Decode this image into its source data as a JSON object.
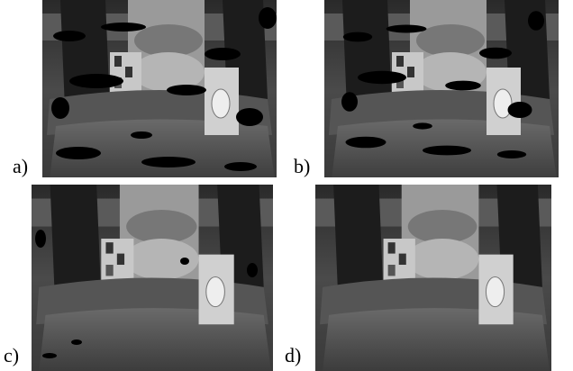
{
  "figure": {
    "panels": [
      {
        "label": "a)"
      },
      {
        "label": "b)"
      },
      {
        "label": "c)"
      },
      {
        "label": "d)"
      }
    ]
  }
}
